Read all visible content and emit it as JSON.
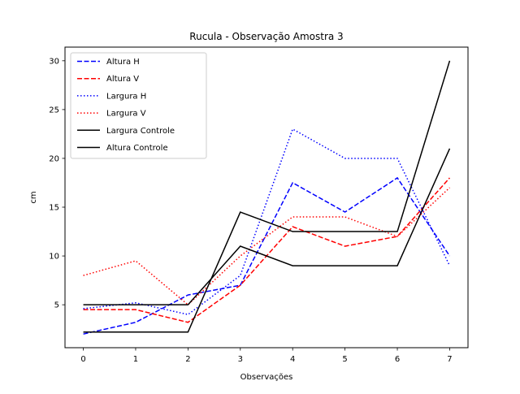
{
  "chart_data": {
    "type": "line",
    "title": "Rucula - Observação Amostra 3",
    "xlabel": "Observações",
    "ylabel": "cm",
    "x": [
      0,
      1,
      2,
      3,
      4,
      5,
      6,
      7
    ],
    "xlim": [
      -0.35,
      7.35
    ],
    "ylim": [
      0.6,
      31.4
    ],
    "xticks": [
      0,
      1,
      2,
      3,
      4,
      5,
      6,
      7
    ],
    "yticks": [
      5,
      10,
      15,
      20,
      25,
      30
    ],
    "grid": false,
    "legend_position": "upper-left",
    "series": [
      {
        "name": "Altura H",
        "color": "#0000ff",
        "style": "dashed",
        "values": [
          2.0,
          3.2,
          6.0,
          7.0,
          17.5,
          14.5,
          18.0,
          10.0
        ]
      },
      {
        "name": "Altura V",
        "color": "#ff0000",
        "style": "dashed",
        "values": [
          4.5,
          4.5,
          3.2,
          7.0,
          13.0,
          11.0,
          12.0,
          18.0
        ]
      },
      {
        "name": "Largura H",
        "color": "#0000ff",
        "style": "dotted",
        "values": [
          4.6,
          5.2,
          4.0,
          8.0,
          23.0,
          20.0,
          20.0,
          9.0
        ]
      },
      {
        "name": "Largura V",
        "color": "#ff0000",
        "style": "dotted",
        "values": [
          8.0,
          9.5,
          5.0,
          10.0,
          14.0,
          14.0,
          12.0,
          17.0
        ]
      },
      {
        "name": "Largura Controle",
        "color": "#000000",
        "style": "solid",
        "values": [
          2.2,
          2.2,
          2.2,
          14.5,
          12.5,
          12.5,
          12.5,
          30.0
        ]
      },
      {
        "name": "Altura Controle",
        "color": "#000000",
        "style": "solid",
        "values": [
          5.0,
          5.0,
          5.0,
          11.0,
          9.0,
          9.0,
          9.0,
          21.0
        ]
      }
    ]
  }
}
